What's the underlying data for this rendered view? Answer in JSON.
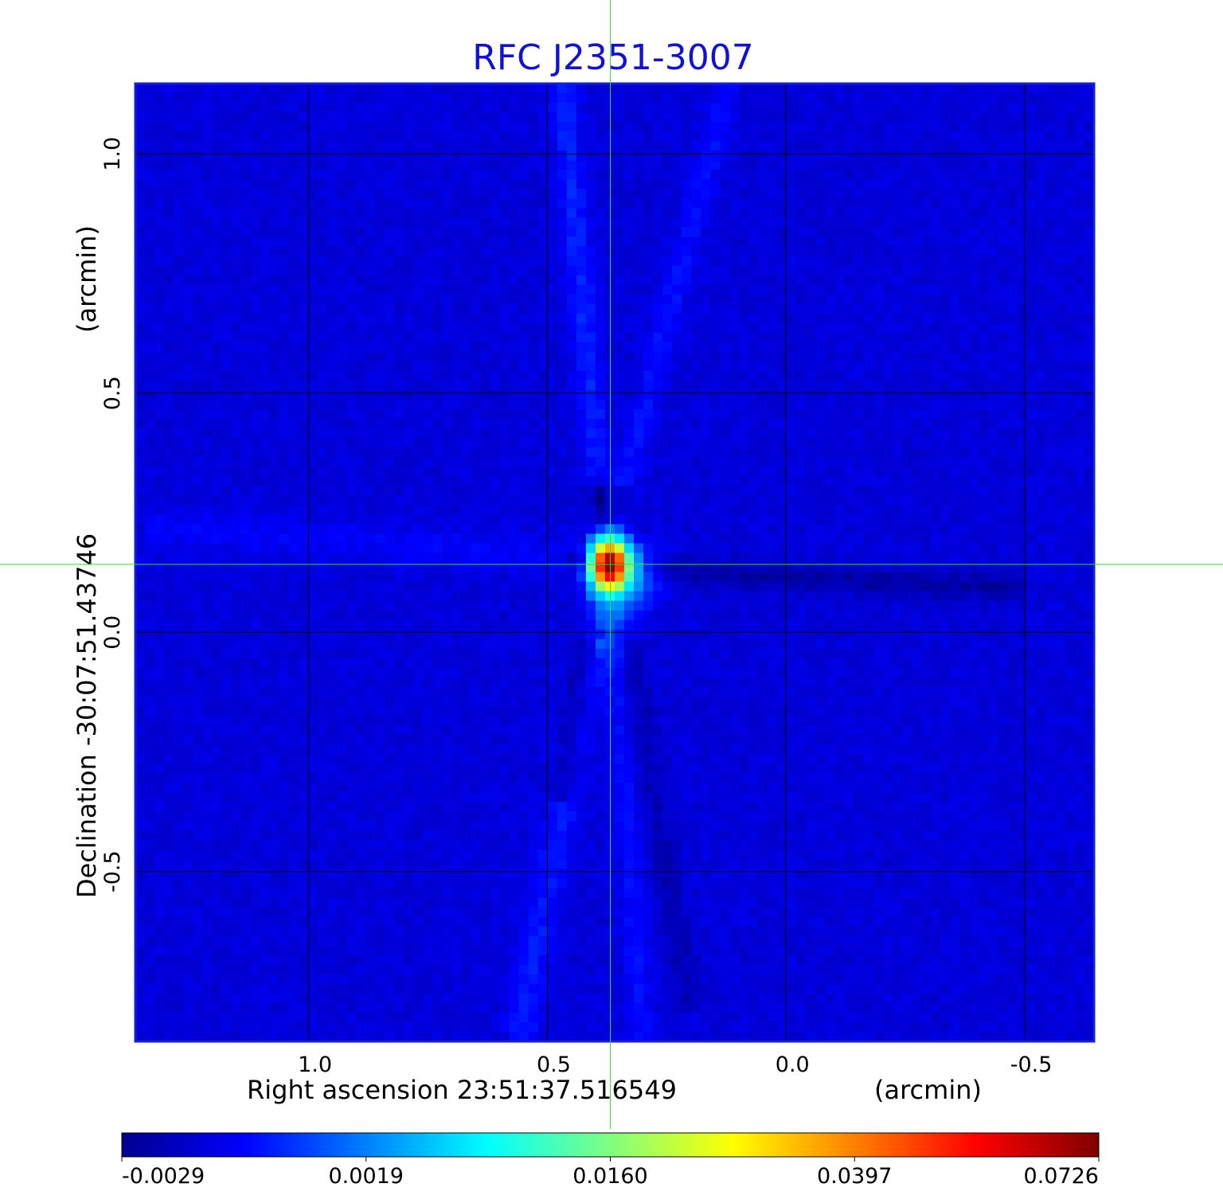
{
  "chart_data": {
    "type": "heatmap",
    "title": "RFC J2351-3007",
    "xlabel": "Right ascension  23:51:37.516549",
    "xunit": "(arcmin)",
    "ylabel": "Declination  -30:07:51.43746",
    "yunit": "(arcmin)",
    "x_ticks": [
      "1.0",
      "0.5",
      "0.0",
      "-0.5"
    ],
    "y_ticks": [
      "1.0",
      "0.5",
      "0.0",
      "-0.5"
    ],
    "x_tick_values": [
      1.0,
      0.5,
      0.0,
      -0.5
    ],
    "y_tick_values": [
      1.0,
      0.5,
      0.0,
      -0.5
    ],
    "xlim": [
      1.363,
      -0.645
    ],
    "ylim": [
      -0.855,
      1.147
    ],
    "grid": true,
    "crosshair": {
      "x": 0.368,
      "y": 0.142,
      "color": "#33dd33"
    },
    "colormap": "jet",
    "colorbar": {
      "ticks": [
        "-0.0029",
        "0.0019",
        "0.0160",
        "0.0397",
        "0.0726"
      ],
      "tick_values": [
        -0.0029,
        0.0019,
        0.016,
        0.0397,
        0.0726
      ]
    },
    "background_value": -0.0012,
    "peak": {
      "x": 0.368,
      "y": 0.142,
      "value": 0.0726
    },
    "features": [
      {
        "kind": "blob",
        "x": 0.37,
        "y": 0.14,
        "sx": 0.022,
        "sy": 0.03,
        "amp": 0.0738
      },
      {
        "kind": "blob",
        "x": 0.33,
        "y": 0.12,
        "sx": 0.04,
        "sy": 0.04,
        "amp": 0.0045
      },
      {
        "kind": "blob",
        "x": 0.37,
        "y": 0.04,
        "sx": 0.03,
        "sy": 0.05,
        "amp": 0.0025
      },
      {
        "kind": "blob",
        "x": 0.435,
        "y": 0.15,
        "sx": 0.02,
        "sy": 0.012,
        "amp": -0.0017
      },
      {
        "kind": "blob",
        "x": 0.39,
        "y": 0.29,
        "sx": 0.012,
        "sy": 0.035,
        "amp": -0.0016
      },
      {
        "kind": "streak",
        "x1": 0.39,
        "y1": 0.3,
        "x2": 0.47,
        "y2": 1.15,
        "w": 0.02,
        "amp": 0.0013
      },
      {
        "kind": "streak",
        "x1": 0.34,
        "y1": 0.3,
        "x2": 0.12,
        "y2": 1.15,
        "w": 0.02,
        "amp": 0.0009
      },
      {
        "kind": "streak",
        "x1": 0.4,
        "y1": -0.02,
        "x2": 0.56,
        "y2": -0.85,
        "w": 0.025,
        "amp": 0.0011
      },
      {
        "kind": "streak",
        "x1": 0.36,
        "y1": -0.02,
        "x2": 0.3,
        "y2": -0.85,
        "w": 0.02,
        "amp": 0.0008
      },
      {
        "kind": "streak",
        "x1": 0.42,
        "y1": -0.02,
        "x2": 0.47,
        "y2": -0.35,
        "w": 0.02,
        "amp": -0.0012
      },
      {
        "kind": "streak",
        "x1": 0.33,
        "y1": -0.02,
        "x2": 0.2,
        "y2": -0.8,
        "w": 0.02,
        "amp": -0.0007
      },
      {
        "kind": "streak",
        "x1": 0.3,
        "y1": 0.13,
        "x2": -0.5,
        "y2": 0.09,
        "w": 0.02,
        "amp": -0.001
      },
      {
        "kind": "streak",
        "x1": 0.44,
        "y1": 0.16,
        "x2": 1.35,
        "y2": 0.22,
        "w": 0.03,
        "amp": 0.0006
      }
    ]
  }
}
